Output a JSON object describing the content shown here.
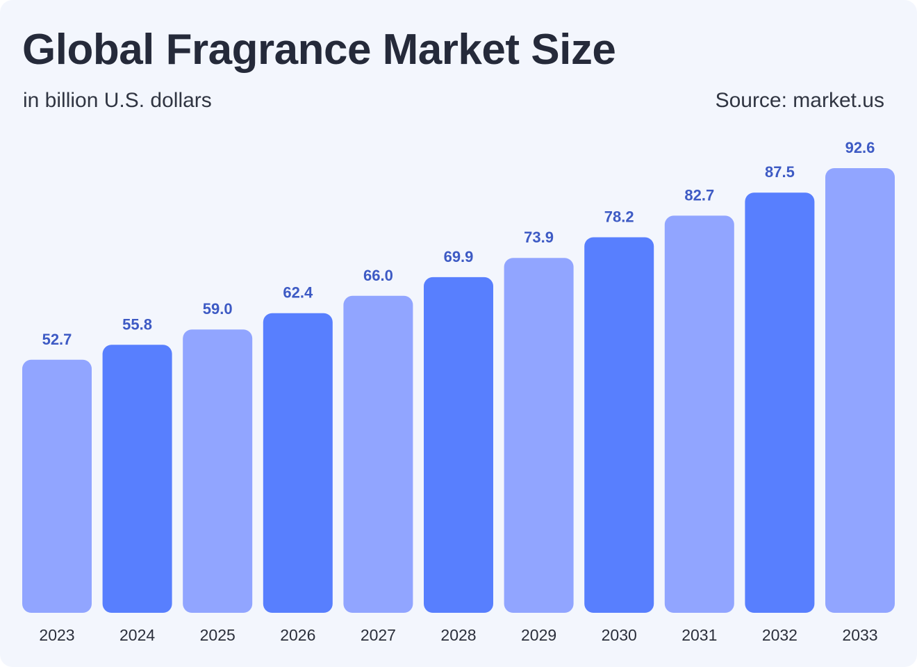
{
  "header": {
    "title": "Global Fragrance Market Size",
    "subtitle": "in billion U.S. dollars",
    "source": "Source: market.us"
  },
  "colors": {
    "background": "#f3f6fd",
    "bar_light": "#91a5ff",
    "bar_dark": "#587ffe",
    "value_label": "#3d5ac4",
    "text": "#252a3a"
  },
  "chart_data": {
    "type": "bar",
    "title": "Global Fragrance Market Size",
    "subtitle": "in billion U.S. dollars",
    "xlabel": "",
    "ylabel": "",
    "categories": [
      "2023",
      "2024",
      "2025",
      "2026",
      "2027",
      "2028",
      "2029",
      "2030",
      "2031",
      "2032",
      "2033"
    ],
    "values": [
      52.7,
      55.8,
      59.0,
      62.4,
      66.0,
      69.9,
      73.9,
      78.2,
      82.7,
      87.5,
      92.6
    ],
    "value_labels": [
      "52.7",
      "55.8",
      "59.0",
      "62.4",
      "66.0",
      "69.9",
      "73.9",
      "78.2",
      "82.7",
      "87.5",
      "92.6"
    ],
    "ylim": [
      0,
      92.6
    ],
    "grid": false,
    "legend": "none",
    "bar_color_pattern": [
      "light",
      "dark",
      "light",
      "dark",
      "light",
      "dark",
      "light",
      "dark",
      "light",
      "dark",
      "light"
    ]
  }
}
